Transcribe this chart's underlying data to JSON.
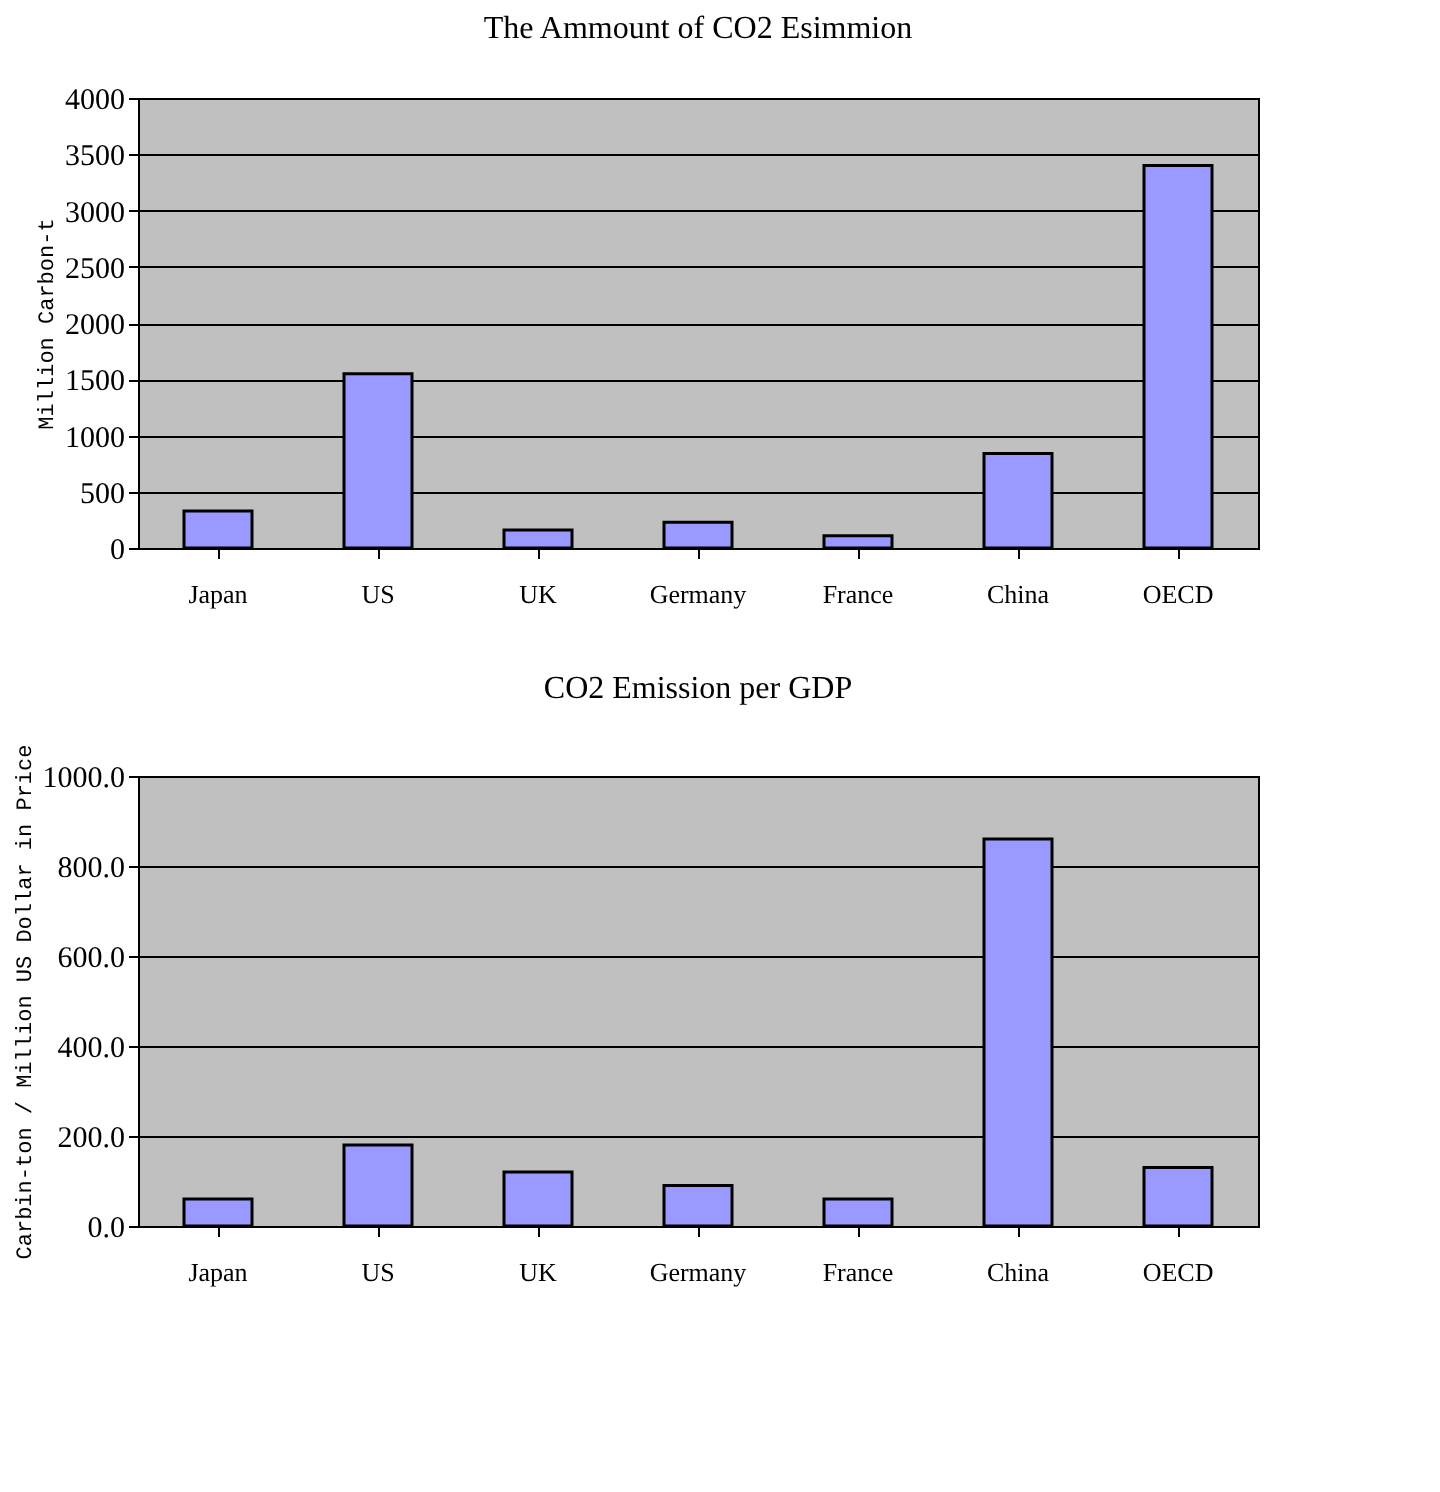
{
  "chart_data": [
    {
      "type": "bar",
      "title": "The Ammount of CO2 Esimmion",
      "ylabel": "Million Carbon-t",
      "categories": [
        "Japan",
        "US",
        "UK",
        "Germany",
        "France",
        "China",
        "OECD"
      ],
      "values": [
        330,
        1550,
        160,
        230,
        110,
        840,
        3400
      ],
      "color": "#9999ff",
      "ylim": [
        0,
        4000
      ],
      "yticks": [
        0,
        500,
        1000,
        1500,
        2000,
        2500,
        3000,
        3500,
        4000
      ],
      "grid": "y"
    },
    {
      "type": "bar",
      "title": "CO2 Emission per GDP",
      "ylabel": "Carbin-ton / Million US Dollar in Price",
      "categories": [
        "Japan",
        "US",
        "UK",
        "Germany",
        "France",
        "China",
        "OECD"
      ],
      "values": [
        60,
        180,
        120,
        90,
        60,
        860,
        130
      ],
      "color": "#9999ff",
      "ylim": [
        0,
        1000
      ],
      "yticks": [
        {
          "value": 0,
          "label": "0.0"
        },
        {
          "value": 200,
          "label": "200.0"
        },
        {
          "value": 400,
          "label": "400.0"
        },
        {
          "value": 600,
          "label": "600.0"
        },
        {
          "value": 800,
          "label": "800.0"
        },
        {
          "value": 1000,
          "label": "1000.0"
        }
      ],
      "grid": "y"
    }
  ]
}
